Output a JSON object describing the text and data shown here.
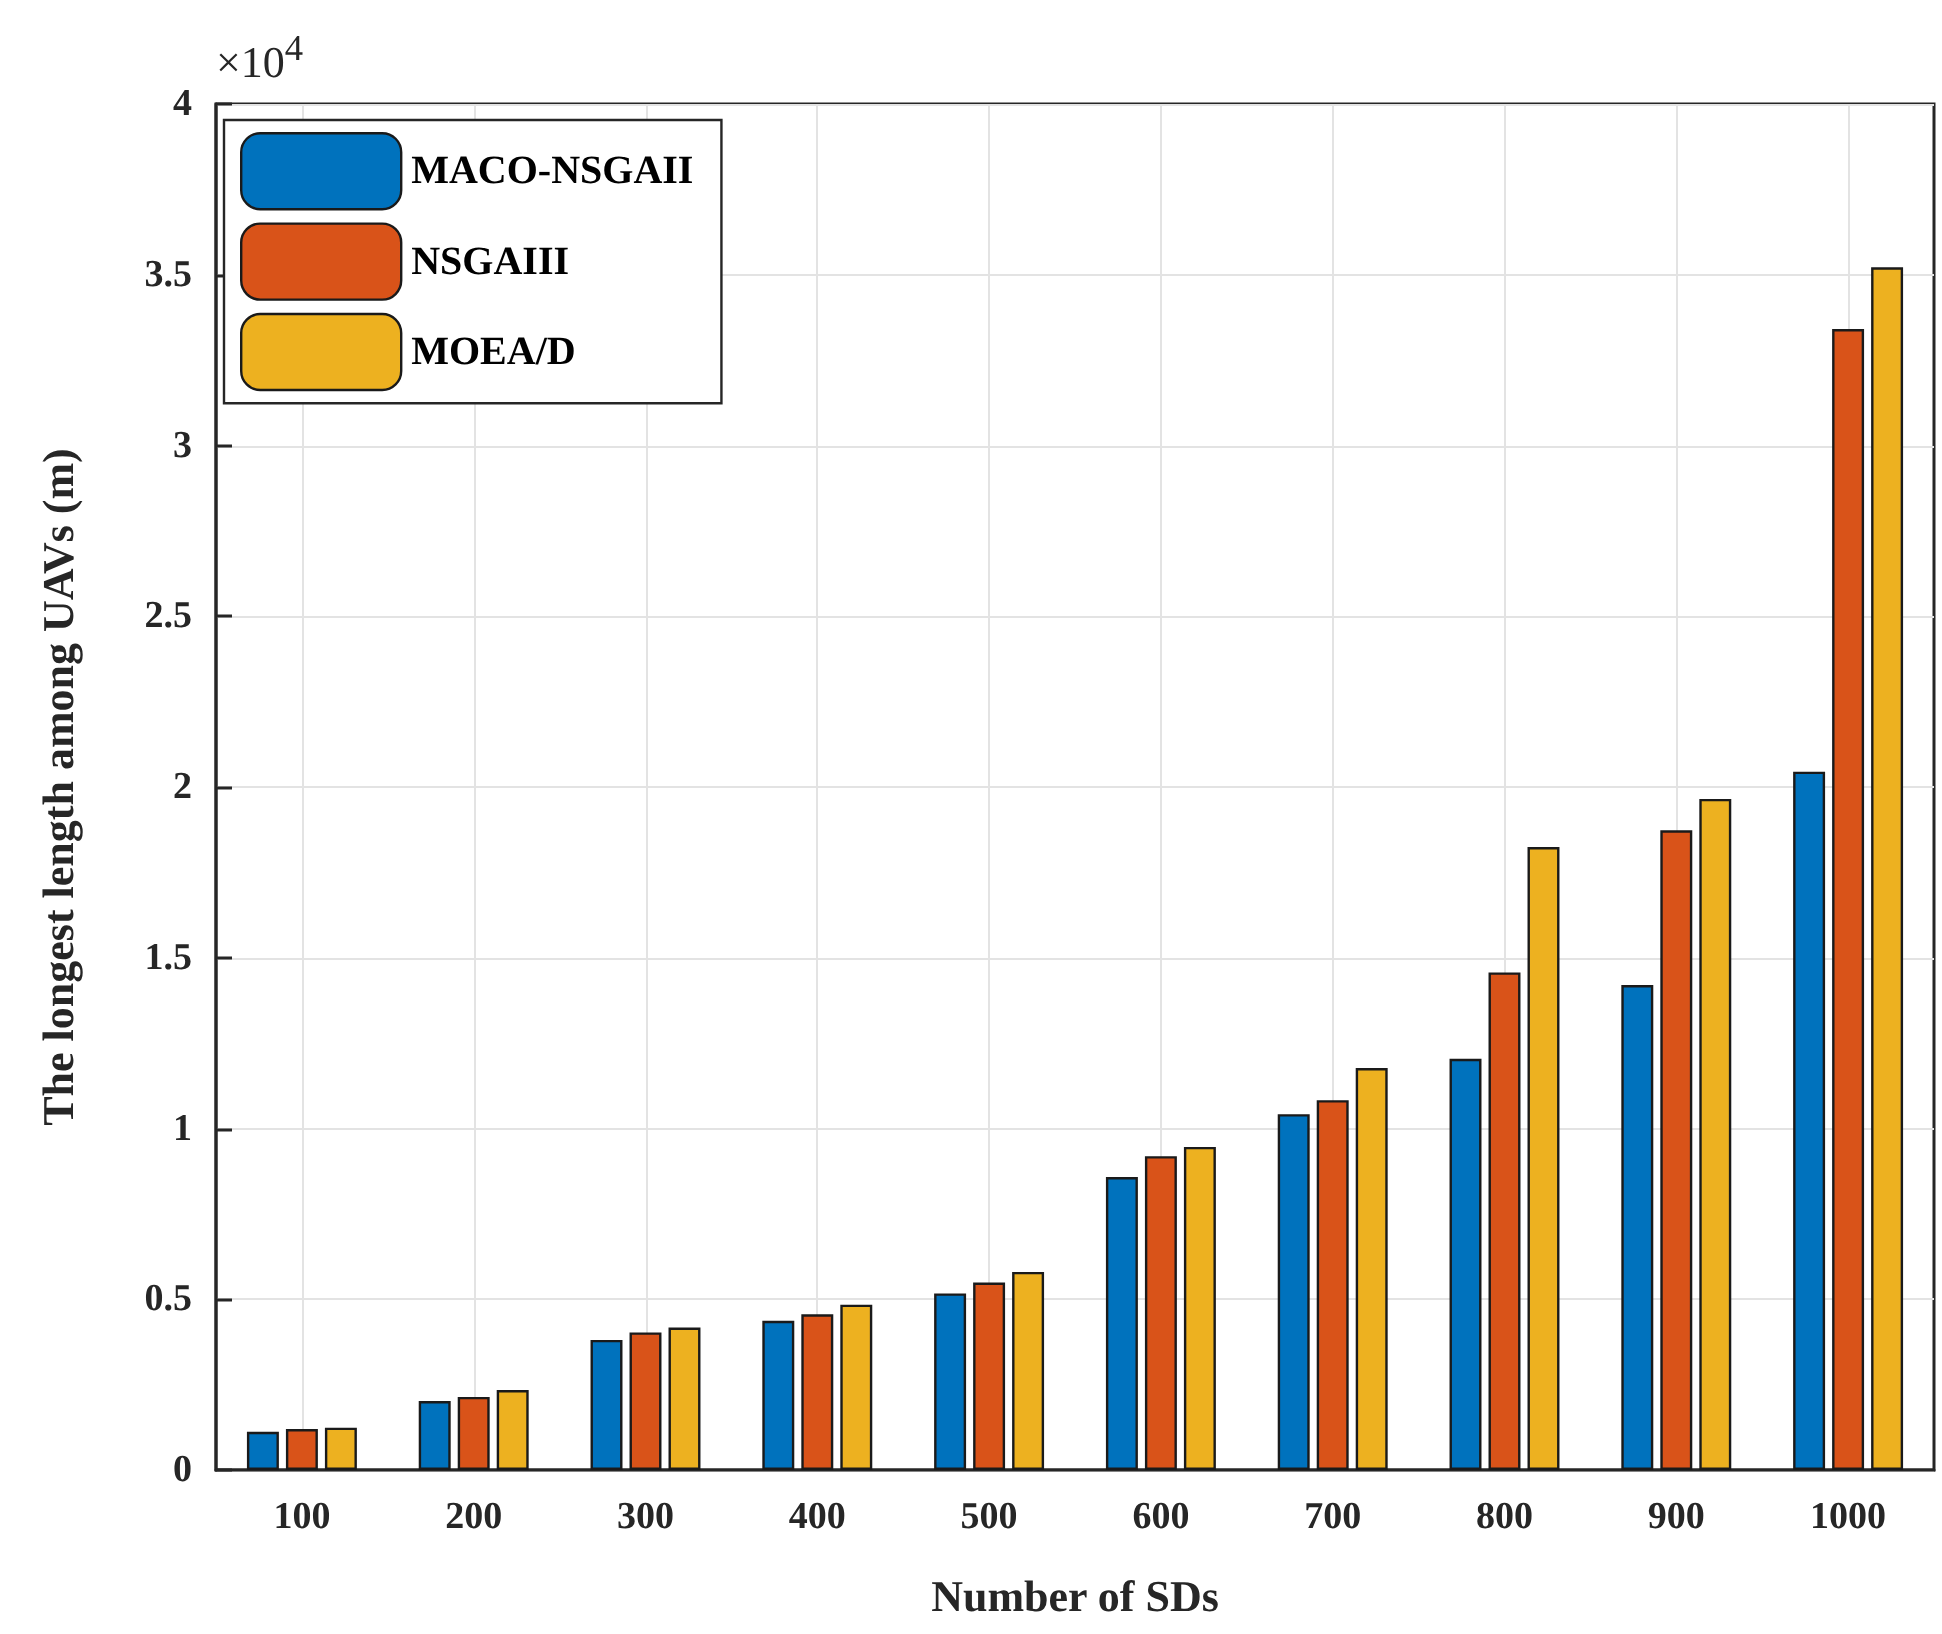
{
  "chart_data": {
    "type": "bar",
    "xlabel": "Number of SDs",
    "ylabel": "The longest length among UAVs (m)",
    "annotations": [
      "×10$^{4}$"
    ],
    "categories": [
      "100",
      "200",
      "300",
      "400",
      "500",
      "600",
      "700",
      "800",
      "900",
      "1000"
    ],
    "series": [
      {
        "name": "MACO-NSGAII",
        "color": "#0072bd",
        "values": [
          0.112,
          0.202,
          0.381,
          0.437,
          0.517,
          0.858,
          1.042,
          1.204,
          1.42,
          2.045
        ]
      },
      {
        "name": "NSGAIII",
        "color": "#d95319",
        "values": [
          0.12,
          0.214,
          0.403,
          0.456,
          0.549,
          0.919,
          1.083,
          1.457,
          1.873,
          3.341
        ]
      },
      {
        "name": "MOEA/D",
        "color": "#edb120",
        "values": [
          0.124,
          0.234,
          0.417,
          0.484,
          0.58,
          0.946,
          1.177,
          1.824,
          1.965,
          3.522
        ]
      }
    ],
    "ylim": [
      0,
      4
    ],
    "yticks": [
      0,
      0.5,
      1,
      1.5,
      2,
      2.5,
      3,
      3.5,
      4
    ],
    "grid": true,
    "legend": "top left"
  }
}
